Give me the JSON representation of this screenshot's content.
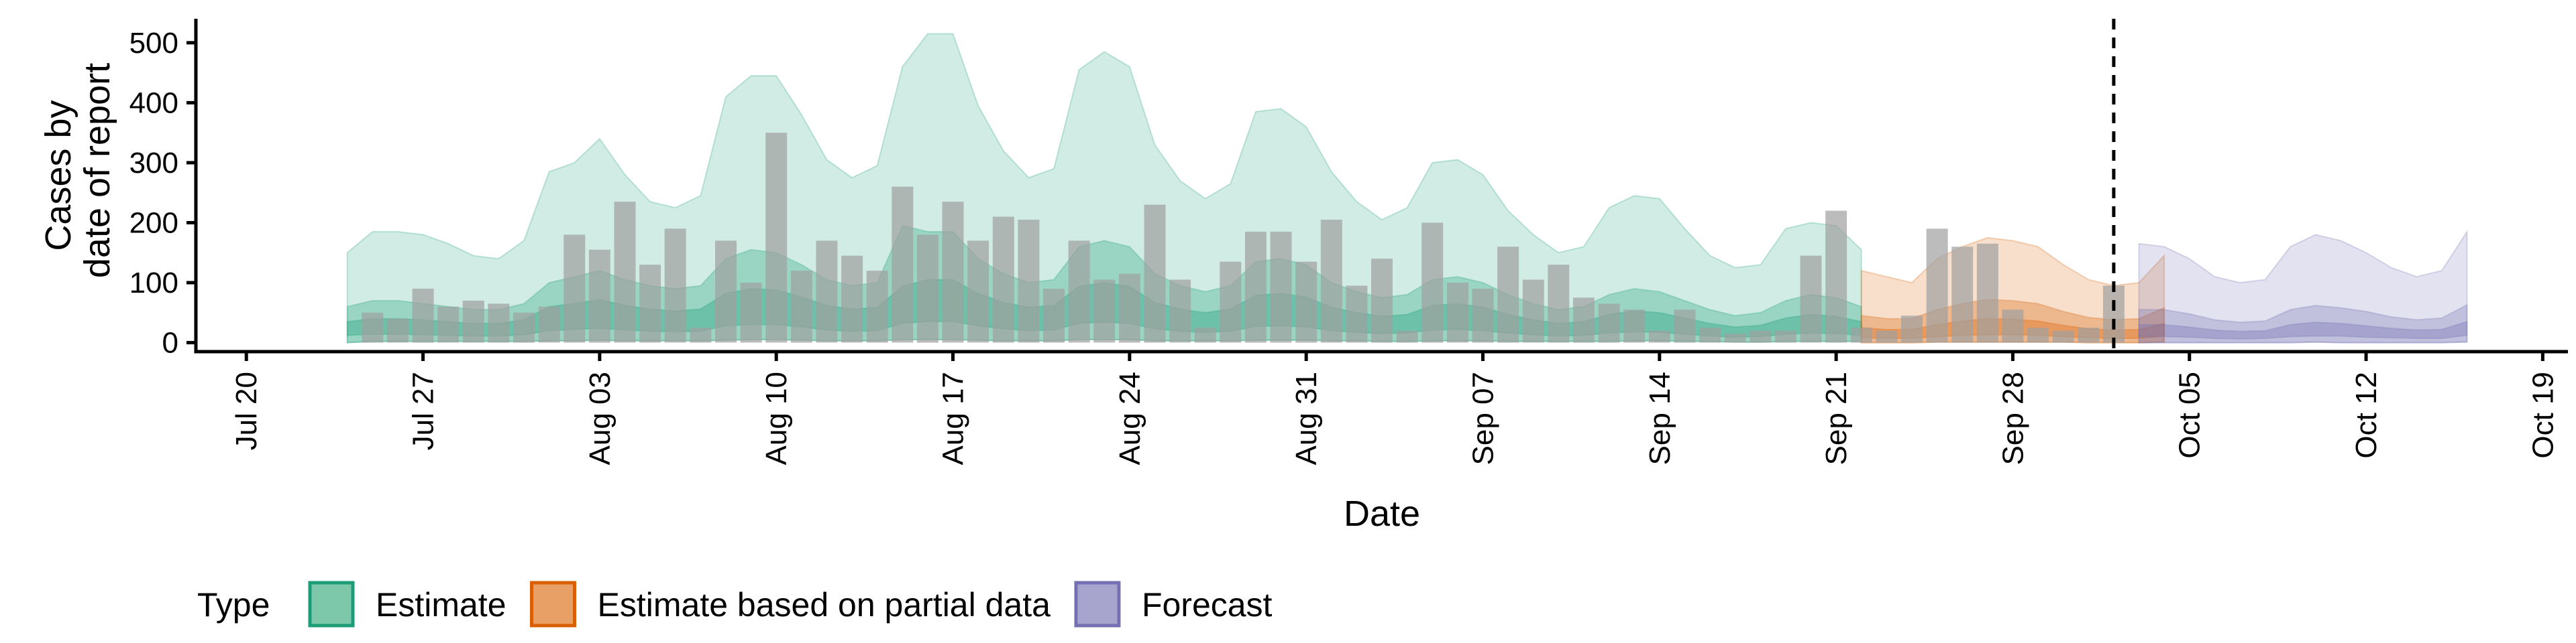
{
  "chart_data": {
    "type": "area",
    "title": "",
    "xlabel": "Date",
    "ylabel": [
      "Cases by",
      "date of report"
    ],
    "ylim": [
      -15,
      540
    ],
    "yticks": [
      0,
      100,
      200,
      300,
      400,
      500
    ],
    "x_range": [
      "2020-07-18",
      "2020-10-20"
    ],
    "xticks": [
      "2020-07-20",
      "2020-07-27",
      "2020-08-03",
      "2020-08-10",
      "2020-08-17",
      "2020-08-24",
      "2020-08-31",
      "2020-09-07",
      "2020-09-14",
      "2020-09-21",
      "2020-09-28",
      "2020-10-05",
      "2020-10-12",
      "2020-10-19"
    ],
    "xtick_labels": [
      "Jul 20",
      "Jul 27",
      "Aug 03",
      "Aug 10",
      "Aug 17",
      "Aug 24",
      "Aug 31",
      "Sep 07",
      "Sep 14",
      "Sep 21",
      "Sep 28",
      "Oct 05",
      "Oct 12",
      "Oct 19"
    ],
    "forecast_date": "2020-10-02",
    "grid": false,
    "legend": {
      "title": "Type",
      "position": "bottom",
      "items": [
        {
          "label": "Estimate",
          "fill": "#7dc7ab",
          "stroke": "#1b9e77"
        },
        {
          "label": "Estimate based on partial data",
          "fill": "#e9a066",
          "stroke": "#d95f02"
        },
        {
          "label": "Forecast",
          "fill": "#a7a5cd",
          "stroke": "#7570b3"
        }
      ]
    },
    "colors": {
      "Estimate": "#1b9e77",
      "Estimate based on partial data": "#d95f02",
      "Forecast": "#7570b3",
      "bars": "#a0a0a0"
    },
    "bars": {
      "start": "2020-07-25",
      "values": [
        50,
        40,
        90,
        60,
        70,
        65,
        50,
        60,
        180,
        155,
        235,
        130,
        190,
        25,
        170,
        100,
        350,
        120,
        170,
        145,
        120,
        260,
        180,
        235,
        170,
        210,
        205,
        90,
        170,
        105,
        115,
        230,
        105,
        25,
        135,
        185,
        185,
        135,
        205,
        95,
        140,
        20,
        200,
        100,
        90,
        160,
        105,
        130,
        75,
        65,
        55,
        20,
        55,
        25,
        15,
        20,
        20,
        145,
        220,
        25,
        20,
        45,
        190,
        160,
        165,
        55,
        25,
        20,
        25,
        95
      ]
    },
    "series": [
      {
        "name": "Estimate",
        "start": "2020-07-24",
        "upper": [
          150,
          185,
          185,
          180,
          165,
          145,
          140,
          170,
          285,
          300,
          340,
          280,
          235,
          225,
          245,
          410,
          445,
          445,
          380,
          305,
          275,
          295,
          460,
          515,
          515,
          395,
          320,
          275,
          290,
          455,
          485,
          460,
          330,
          270,
          240,
          265,
          385,
          390,
          360,
          285,
          235,
          205,
          225,
          300,
          305,
          280,
          220,
          180,
          150,
          160,
          225,
          245,
          240,
          190,
          145,
          125,
          130,
          190,
          200,
          195,
          155
        ],
        "outer_mid_hi": [
          60,
          70,
          70,
          65,
          60,
          55,
          55,
          65,
          100,
          110,
          120,
          105,
          95,
          90,
          95,
          140,
          155,
          150,
          130,
          105,
          95,
          100,
          195,
          185,
          185,
          140,
          115,
          100,
          105,
          160,
          170,
          160,
          115,
          95,
          85,
          95,
          135,
          140,
          130,
          100,
          85,
          75,
          80,
          105,
          110,
          100,
          80,
          65,
          55,
          60,
          80,
          90,
          85,
          70,
          55,
          45,
          50,
          70,
          80,
          75,
          60
        ],
        "inner_hi": [
          35,
          40,
          40,
          38,
          35,
          32,
          32,
          38,
          60,
          65,
          72,
          62,
          56,
          53,
          56,
          82,
          90,
          88,
          76,
          62,
          56,
          59,
          94,
          105,
          105,
          82,
          67,
          59,
          62,
          94,
          100,
          94,
          67,
          56,
          50,
          56,
          79,
          82,
          76,
          59,
          50,
          44,
          47,
          62,
          65,
          59,
          47,
          38,
          32,
          35,
          47,
          53,
          50,
          41,
          32,
          26,
          29,
          41,
          47,
          44,
          35
        ],
        "inner_lo": [
          12,
          14,
          14,
          13,
          12,
          11,
          11,
          13,
          20,
          22,
          24,
          21,
          19,
          18,
          19,
          28,
          30,
          30,
          26,
          21,
          19,
          20,
          32,
          35,
          35,
          28,
          23,
          20,
          21,
          32,
          34,
          32,
          23,
          19,
          17,
          19,
          27,
          28,
          26,
          20,
          17,
          15,
          16,
          21,
          22,
          20,
          16,
          13,
          11,
          12,
          16,
          18,
          17,
          14,
          11,
          9,
          10,
          14,
          16,
          15,
          12
        ],
        "lower": [
          0,
          2,
          2,
          2,
          2,
          2,
          2,
          2,
          3,
          3,
          4,
          3,
          3,
          3,
          3,
          4,
          5,
          5,
          4,
          3,
          3,
          3,
          5,
          5,
          5,
          4,
          3,
          3,
          3,
          5,
          5,
          5,
          3,
          3,
          3,
          3,
          4,
          4,
          4,
          3,
          3,
          2,
          2,
          3,
          3,
          3,
          2,
          2,
          2,
          2,
          2,
          3,
          3,
          2,
          2,
          1,
          1,
          2,
          2,
          2,
          2
        ]
      },
      {
        "name": "Estimate based on partial data",
        "start": "2020-09-22",
        "upper": [
          120,
          110,
          100,
          140,
          160,
          175,
          170,
          160,
          130,
          105,
          95,
          100,
          145
        ],
        "outer_mid_hi": [
          45,
          40,
          40,
          55,
          65,
          72,
          70,
          65,
          52,
          42,
          38,
          40,
          58
        ],
        "inner_hi": [
          25,
          22,
          22,
          30,
          36,
          40,
          39,
          36,
          29,
          23,
          21,
          22,
          32
        ],
        "inner_lo": [
          8,
          7,
          7,
          10,
          12,
          13,
          13,
          12,
          10,
          8,
          7,
          7,
          11
        ],
        "lower": [
          0,
          0,
          0,
          1,
          1,
          1,
          1,
          1,
          1,
          0,
          0,
          0,
          1
        ]
      },
      {
        "name": "Forecast",
        "start": "2020-10-03",
        "upper": [
          165,
          160,
          140,
          110,
          100,
          105,
          160,
          180,
          170,
          150,
          125,
          110,
          120,
          185
        ],
        "outer_mid_hi": [
          55,
          55,
          48,
          38,
          34,
          36,
          55,
          62,
          58,
          52,
          43,
          38,
          41,
          63
        ],
        "inner_hi": [
          30,
          30,
          26,
          21,
          19,
          20,
          30,
          34,
          32,
          28,
          24,
          21,
          22,
          35
        ],
        "inner_lo": [
          10,
          10,
          9,
          7,
          6,
          7,
          10,
          11,
          11,
          9,
          8,
          7,
          7,
          12
        ],
        "lower": [
          0,
          0,
          0,
          0,
          0,
          0,
          0,
          1,
          0,
          0,
          0,
          0,
          0,
          1
        ]
      }
    ]
  }
}
